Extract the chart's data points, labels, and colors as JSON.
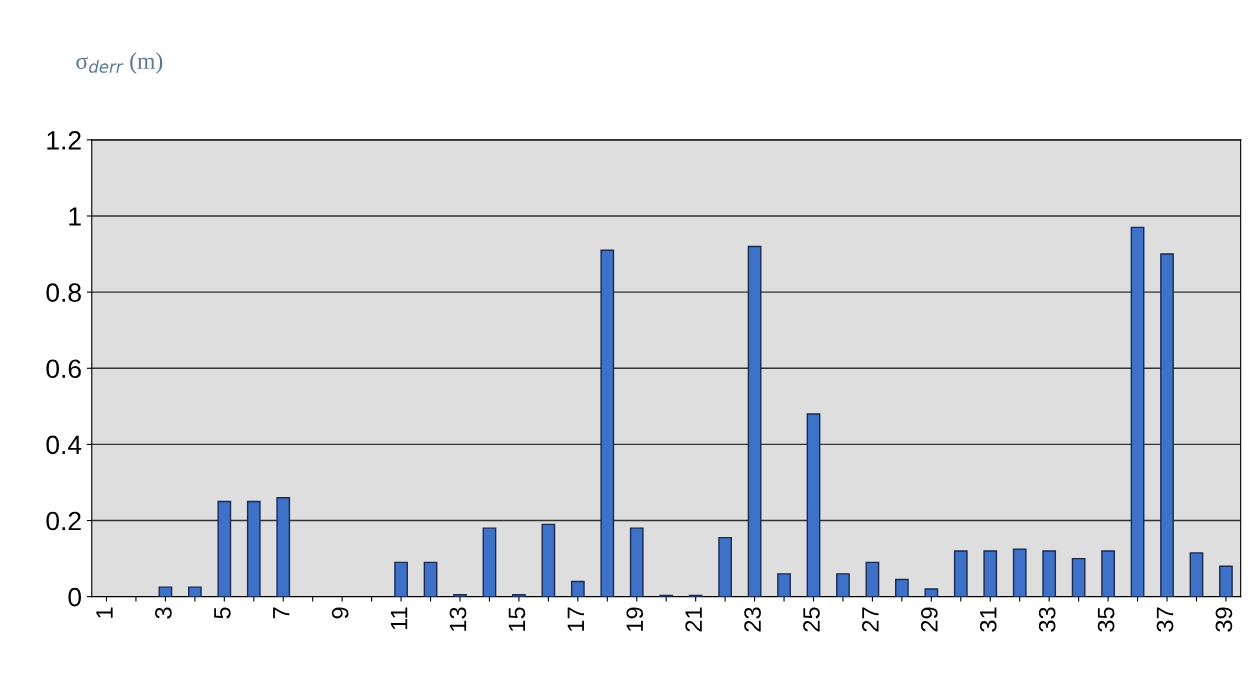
{
  "chart_data": {
    "type": "bar",
    "ylabel": "σ$_{derr}$ (m)",
    "categories": [
      "1",
      null,
      "3",
      null,
      "5",
      null,
      "7",
      null,
      "9",
      null,
      "11",
      null,
      "13",
      null,
      "15",
      null,
      "17",
      null,
      "19",
      null,
      "21",
      null,
      "23",
      null,
      "25",
      null,
      "27",
      null,
      "29",
      null,
      "31",
      null,
      "33",
      null,
      "35",
      null,
      "37",
      null,
      "39"
    ],
    "values": [
      0,
      0,
      0.025,
      0.025,
      0.25,
      0.25,
      0.26,
      0,
      0,
      0,
      0.09,
      0.09,
      0.005,
      0.18,
      0.005,
      0.19,
      0.04,
      0.91,
      0.18,
      0.003,
      0.003,
      0.155,
      0.92,
      0.06,
      0.48,
      0.06,
      0.09,
      0.045,
      0.02,
      0.12,
      0.12,
      0.125,
      0.12,
      0.1,
      0.12,
      0.97,
      0.9,
      0.115,
      0.08
    ],
    "color": "#3d72c8",
    "ylim": [
      0,
      1.2
    ],
    "yticks": [
      0,
      0.2,
      0.4,
      0.6,
      0.8,
      1,
      1.2
    ],
    "grid": "y"
  }
}
